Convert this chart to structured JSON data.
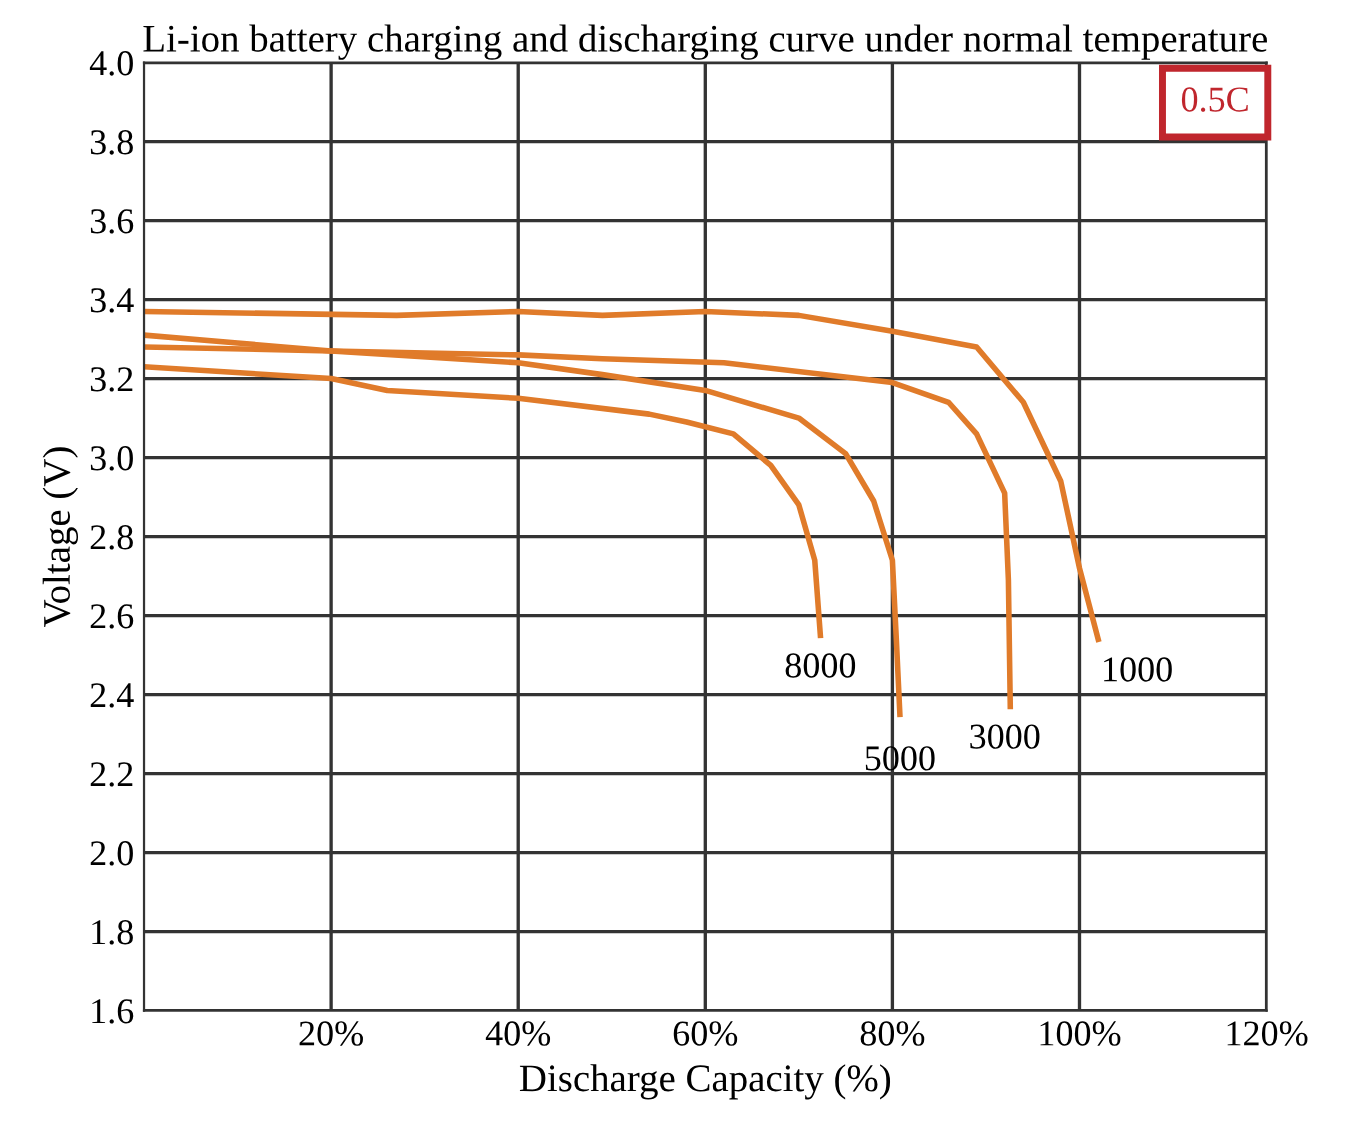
{
  "chart_data": {
    "type": "line",
    "title": "Li-ion battery charging and discharging curve under normal temperature",
    "xlabel": "Discharge Capacity (%)",
    "ylabel": "Voltage (V)",
    "xlim": [
      0,
      120
    ],
    "xticks": [
      {
        "value": 20,
        "label": "20%"
      },
      {
        "value": 40,
        "label": "40%"
      },
      {
        "value": 60,
        "label": "60%"
      },
      {
        "value": 80,
        "label": "80%"
      },
      {
        "value": 100,
        "label": "100%"
      },
      {
        "value": 120,
        "label": "120%"
      }
    ],
    "ylim": [
      1.6,
      4.0
    ],
    "yticks": [
      1.6,
      1.8,
      {
        "value": 2,
        "label": "2.0"
      },
      2.2,
      2.4,
      2.6,
      2.8,
      {
        "value": 3,
        "label": "3.0"
      },
      3.2,
      3.4,
      3.6,
      3.8,
      {
        "value": 4,
        "label": "4.0"
      }
    ],
    "grid": true,
    "legend": false,
    "marker": "none",
    "line_style": "solid",
    "annotations": [
      "0.5C"
    ],
    "series": [
      {
        "name": "1000",
        "color": "#e07b2a",
        "x": [
          0,
          27,
          40,
          49,
          60,
          70,
          80,
          89,
          94,
          98,
          100,
          102
        ],
        "values": [
          3.37,
          3.36,
          3.37,
          3.36,
          3.37,
          3.36,
          3.32,
          3.28,
          3.14,
          2.94,
          2.72,
          2.54
        ]
      },
      {
        "name": "3000",
        "color": "#e07b2a",
        "x": [
          0,
          20,
          40,
          49,
          62,
          80,
          86,
          89,
          92,
          92.4,
          92.6
        ],
        "values": [
          3.28,
          3.27,
          3.26,
          3.25,
          3.24,
          3.19,
          3.14,
          3.06,
          2.91,
          2.69,
          2.37
        ]
      },
      {
        "name": "5000",
        "color": "#e07b2a",
        "x": [
          0,
          10,
          20,
          40,
          49,
          60,
          70,
          75,
          78,
          80,
          80.4,
          80.8
        ],
        "values": [
          3.31,
          3.29,
          3.27,
          3.24,
          3.21,
          3.17,
          3.1,
          3.01,
          2.89,
          2.74,
          2.55,
          2.35
        ]
      },
      {
        "name": "8000",
        "color": "#e07b2a",
        "x": [
          0,
          20,
          26,
          40,
          54,
          58,
          63,
          67,
          70,
          71.7,
          72.3
        ],
        "values": [
          3.23,
          3.2,
          3.17,
          3.15,
          3.11,
          3.09,
          3.06,
          2.98,
          2.88,
          2.74,
          2.55
        ]
      }
    ]
  }
}
